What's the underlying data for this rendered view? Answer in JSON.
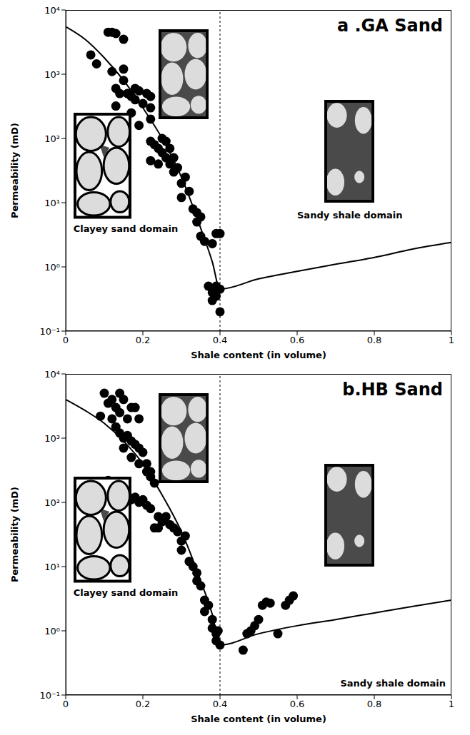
{
  "chart_data": [
    {
      "type": "scatter",
      "title": "a .GA Sand",
      "x_label": "Shale content (in volume)",
      "y_label": "Permeability (mD)",
      "xlim": [
        0,
        1
      ],
      "ylim": [
        0.1,
        10000
      ],
      "log": "y",
      "xticks": [
        0,
        0.2,
        0.4,
        0.6,
        0.8,
        1
      ],
      "yticks": [
        {
          "value": 0.1,
          "label": "10⁻¹"
        },
        {
          "value": 1,
          "label": "10⁰"
        },
        {
          "value": 10,
          "label": "10¹"
        },
        {
          "value": 100,
          "label": "10²"
        },
        {
          "value": 1000,
          "label": "10³"
        },
        {
          "value": 10000,
          "label": "10⁴"
        }
      ],
      "divider_x": 0.4,
      "annotations": [
        "Clayey sand domain",
        "Sandy shale domain"
      ],
      "series": [
        {
          "type": "scatter",
          "color": "#000000",
          "marker": "circle",
          "x": [
            0.065,
            0.08,
            0.11,
            0.12,
            0.13,
            0.15,
            0.12,
            0.13,
            0.14,
            0.13,
            0.15,
            0.15,
            0.16,
            0.17,
            0.17,
            0.18,
            0.18,
            0.19,
            0.19,
            0.2,
            0.21,
            0.22,
            0.22,
            0.22,
            0.22,
            0.22,
            0.23,
            0.24,
            0.24,
            0.25,
            0.25,
            0.26,
            0.26,
            0.27,
            0.27,
            0.28,
            0.28,
            0.29,
            0.3,
            0.31,
            0.3,
            0.32,
            0.33,
            0.34,
            0.34,
            0.35,
            0.35,
            0.36,
            0.38,
            0.39,
            0.4,
            0.37,
            0.38,
            0.38,
            0.39,
            0.39,
            0.4,
            0.4
          ],
          "values": [
            2000,
            1450,
            4500,
            4500,
            4300,
            3500,
            1100,
            600,
            500,
            320,
            1200,
            800,
            500,
            450,
            250,
            600,
            400,
            550,
            160,
            350,
            500,
            450,
            300,
            200,
            90,
            45,
            80,
            70,
            40,
            100,
            60,
            90,
            50,
            70,
            40,
            50,
            30,
            35,
            20,
            25,
            12,
            15,
            8,
            5,
            7,
            6,
            3,
            2.5,
            2.3,
            3.3,
            3.3,
            0.5,
            0.4,
            0.3,
            0.5,
            0.35,
            0.2,
            0.45
          ]
        },
        {
          "type": "line",
          "color": "#000000",
          "line_style": "solid",
          "x": [
            0,
            0.05,
            0.1,
            0.15,
            0.2,
            0.25,
            0.3,
            0.35,
            0.38,
            0.4,
            0.5,
            0.6,
            0.7,
            0.8,
            0.9,
            1
          ],
          "values": [
            5500,
            3500,
            1800,
            800,
            300,
            100,
            25,
            4,
            1.2,
            0.45,
            0.65,
            0.85,
            1.1,
            1.4,
            1.9,
            2.4
          ]
        }
      ]
    },
    {
      "type": "scatter",
      "title": "b.HB Sand",
      "x_label": "Shale content (in volume)",
      "y_label": "Permeability (mD)",
      "xlim": [
        0,
        1
      ],
      "ylim": [
        0.1,
        10000
      ],
      "log": "y",
      "xticks": [
        0,
        0.2,
        0.4,
        0.6,
        0.8,
        1
      ],
      "yticks": [
        {
          "value": 0.1,
          "label": "10⁻¹"
        },
        {
          "value": 1,
          "label": "10⁰"
        },
        {
          "value": 10,
          "label": "10¹"
        },
        {
          "value": 100,
          "label": "10²"
        },
        {
          "value": 1000,
          "label": "10³"
        },
        {
          "value": 10000,
          "label": "10⁴"
        }
      ],
      "divider_x": 0.4,
      "annotations": [
        "Clayey sand domain",
        "Sandy shale domain"
      ],
      "series": [
        {
          "type": "scatter",
          "color": "#000000",
          "marker": "circle",
          "x": [
            0.09,
            0.1,
            0.11,
            0.12,
            0.13,
            0.14,
            0.14,
            0.15,
            0.16,
            0.17,
            0.18,
            0.19,
            0.12,
            0.13,
            0.14,
            0.15,
            0.15,
            0.16,
            0.17,
            0.17,
            0.18,
            0.19,
            0.19,
            0.2,
            0.21,
            0.21,
            0.22,
            0.22,
            0.23,
            0.12,
            0.13,
            0.14,
            0.15,
            0.16,
            0.17,
            0.18,
            0.19,
            0.2,
            0.21,
            0.22,
            0.11,
            0.23,
            0.24,
            0.24,
            0.25,
            0.26,
            0.27,
            0.28,
            0.29,
            0.3,
            0.3,
            0.31,
            0.32,
            0.33,
            0.34,
            0.34,
            0.35,
            0.36,
            0.36,
            0.37,
            0.38,
            0.38,
            0.39,
            0.39,
            0.395,
            0.4,
            0.46,
            0.47,
            0.48,
            0.49,
            0.5,
            0.51,
            0.52,
            0.53,
            0.55,
            0.57,
            0.58,
            0.59
          ],
          "values": [
            2200,
            5000,
            3500,
            4000,
            3000,
            5000,
            2500,
            4000,
            2000,
            3000,
            3000,
            2000,
            2000,
            1500,
            1200,
            1000,
            700,
            1100,
            900,
            500,
            800,
            700,
            400,
            600,
            400,
            300,
            300,
            250,
            200,
            200,
            150,
            180,
            150,
            130,
            110,
            120,
            100,
            110,
            90,
            80,
            220,
            40,
            40,
            60,
            50,
            60,
            45,
            40,
            35,
            25,
            18,
            30,
            12,
            10,
            8,
            6,
            5,
            3,
            2,
            2.5,
            1.5,
            1.1,
            0.9,
            0.7,
            1.0,
            0.6,
            0.5,
            0.9,
            1.0,
            1.2,
            1.5,
            2.5,
            2.8,
            2.7,
            0.9,
            2.5,
            3.0,
            3.5
          ]
        },
        {
          "type": "line",
          "color": "#000000",
          "line_style": "solid",
          "x": [
            0,
            0.05,
            0.1,
            0.15,
            0.2,
            0.25,
            0.3,
            0.35,
            0.38,
            0.4,
            0.5,
            0.6,
            0.7,
            0.8,
            0.9,
            1
          ],
          "values": [
            4000,
            2700,
            1700,
            900,
            400,
            130,
            35,
            6,
            1.8,
            0.6,
            0.9,
            1.2,
            1.5,
            1.9,
            2.4,
            3.0
          ]
        }
      ]
    }
  ]
}
